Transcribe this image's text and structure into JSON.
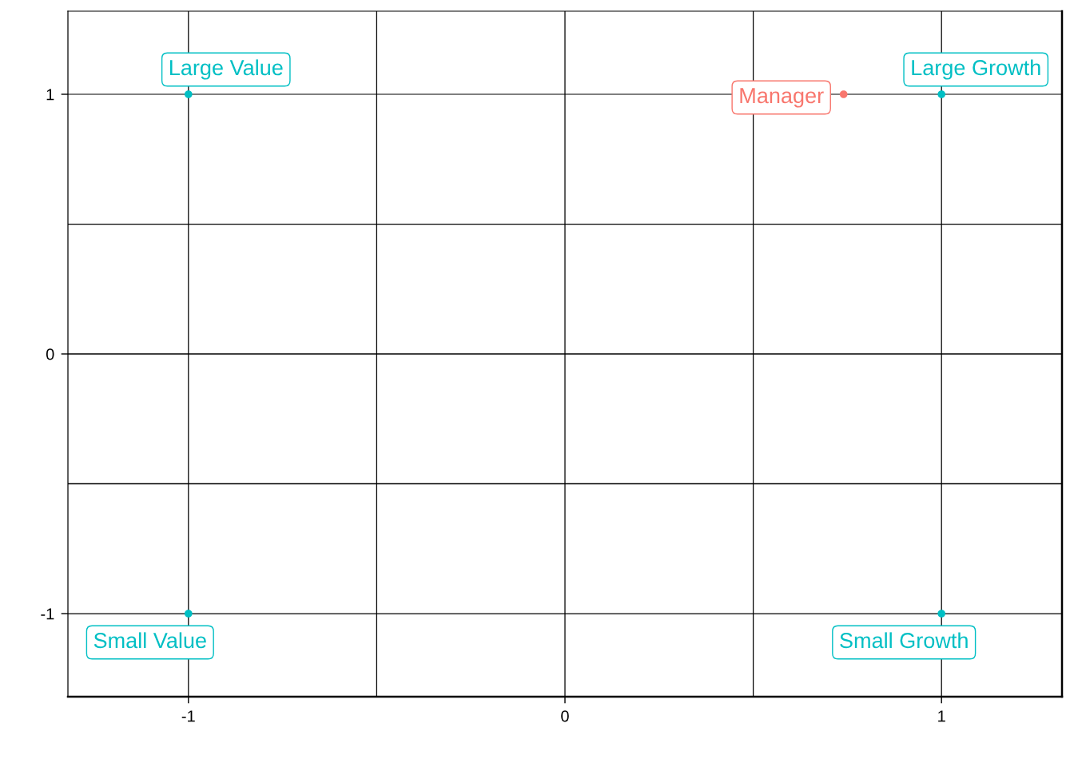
{
  "chart_data": {
    "type": "scatter",
    "series": [
      {
        "color": "#00bfc4",
        "x": [
          -1,
          1,
          -1,
          1
        ],
        "values": [
          1,
          1,
          -1,
          -1
        ]
      },
      {
        "color": "#f8766d",
        "x": [
          0.74
        ],
        "values": [
          1
        ]
      }
    ],
    "annotations": [
      {
        "text": "Large Value",
        "x": -1,
        "y": 1
      },
      {
        "text": "Large Growth",
        "x": 1,
        "y": 1
      },
      {
        "text": "Small Value",
        "x": -1,
        "y": -1
      },
      {
        "text": "Small Growth",
        "x": 1,
        "y": -1
      },
      {
        "text": "Manager",
        "x": 0.74,
        "y": 1
      }
    ],
    "xlim": [
      -1.32,
      1.32
    ],
    "ylim": [
      -1.32,
      1.32
    ],
    "xticks": [
      -1,
      {
        "value": -0.5,
        "label": null
      },
      0,
      {
        "value": 0.5,
        "label": null
      },
      1
    ],
    "yticks": [
      -1,
      {
        "value": -0.5,
        "label": null
      },
      0,
      {
        "value": 0.5,
        "label": null
      },
      1
    ],
    "grid": true,
    "marker": "circle"
  }
}
